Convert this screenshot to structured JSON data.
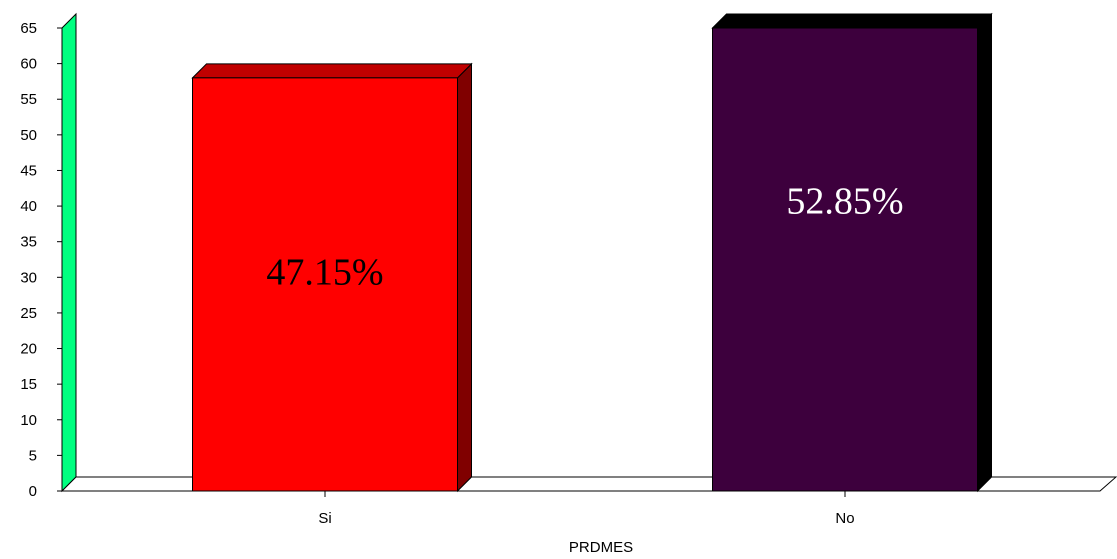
{
  "chart_data": {
    "type": "bar",
    "categories": [
      "Si",
      "No"
    ],
    "values": [
      58,
      65
    ],
    "data_labels": [
      "47.15%",
      "52.85%"
    ],
    "xlabel": "PRDMES",
    "ylabel": "",
    "ylim": [
      0,
      65
    ],
    "yticks": [
      0,
      5,
      10,
      15,
      20,
      25,
      30,
      35,
      40,
      45,
      50,
      55,
      60,
      65
    ],
    "grid": false,
    "legend": "none",
    "style": "3d",
    "colors": {
      "bars": [
        "#ff0000",
        "#3d003d"
      ],
      "bar_sides": [
        "#800000",
        "#000000"
      ],
      "bar_tops": [
        "#c00000",
        "#000000"
      ],
      "label_text": [
        "#000000",
        "#ffffff"
      ],
      "wall": "#00ff80",
      "floor": "#ffffff"
    }
  }
}
